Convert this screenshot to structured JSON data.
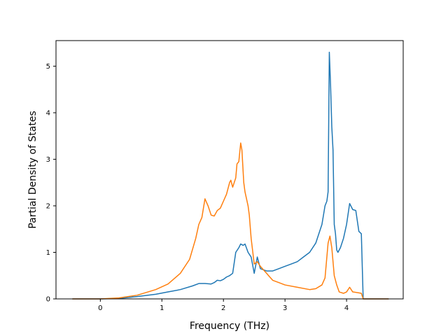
{
  "chart_data": {
    "type": "line",
    "title": "",
    "xlabel": "Frequency (THz)",
    "ylabel": "Partial Density of States",
    "xlim": [
      -0.72,
      4.92
    ],
    "ylim": [
      0,
      5.55
    ],
    "xticks": [
      0,
      1,
      2,
      3,
      4
    ],
    "yticks": [
      0,
      1,
      2,
      3,
      4,
      5
    ],
    "xtick_labels": [
      "0",
      "1",
      "2",
      "3",
      "4"
    ],
    "ytick_labels": [
      "0",
      "1",
      "2",
      "3",
      "4",
      "5"
    ],
    "grid": false,
    "legend": false,
    "series": [
      {
        "color": "#1f77b4",
        "x": [
          -0.45,
          0.0,
          0.3,
          0.6,
          0.9,
          1.1,
          1.3,
          1.5,
          1.6,
          1.7,
          1.8,
          1.85,
          1.9,
          1.95,
          2.0,
          2.05,
          2.1,
          2.15,
          2.2,
          2.25,
          2.28,
          2.32,
          2.35,
          2.4,
          2.45,
          2.5,
          2.55,
          2.6,
          2.7,
          2.8,
          2.9,
          3.0,
          3.1,
          3.2,
          3.3,
          3.4,
          3.5,
          3.55,
          3.6,
          3.65,
          3.68,
          3.7,
          3.72,
          3.74,
          3.76,
          3.78,
          3.8,
          3.82,
          3.84,
          3.86,
          3.9,
          3.95,
          4.0,
          4.05,
          4.1,
          4.15,
          4.2,
          4.24,
          4.27,
          4.3,
          4.5,
          4.68
        ],
        "y": [
          0,
          0,
          0.01,
          0.05,
          0.1,
          0.15,
          0.2,
          0.28,
          0.33,
          0.33,
          0.32,
          0.35,
          0.4,
          0.39,
          0.42,
          0.47,
          0.5,
          0.55,
          1.0,
          1.1,
          1.18,
          1.15,
          1.18,
          1.0,
          0.9,
          0.55,
          0.9,
          0.65,
          0.6,
          0.6,
          0.65,
          0.7,
          0.75,
          0.8,
          0.9,
          1.0,
          1.2,
          1.4,
          1.6,
          2.0,
          2.1,
          2.3,
          5.3,
          4.6,
          3.7,
          3.2,
          1.6,
          1.4,
          1.05,
          1.0,
          1.1,
          1.3,
          1.6,
          2.05,
          1.92,
          1.9,
          1.45,
          1.4,
          0.0,
          0,
          0,
          0
        ]
      },
      {
        "color": "#ff7f0e",
        "x": [
          -0.45,
          0.0,
          0.3,
          0.6,
          0.9,
          1.1,
          1.3,
          1.45,
          1.55,
          1.6,
          1.65,
          1.7,
          1.75,
          1.8,
          1.85,
          1.9,
          1.95,
          2.0,
          2.05,
          2.1,
          2.12,
          2.15,
          2.2,
          2.22,
          2.25,
          2.28,
          2.3,
          2.33,
          2.35,
          2.4,
          2.42,
          2.45,
          2.5,
          2.55,
          2.6,
          2.7,
          2.8,
          2.9,
          3.0,
          3.2,
          3.4,
          3.5,
          3.6,
          3.65,
          3.7,
          3.73,
          3.76,
          3.8,
          3.84,
          3.88,
          3.95,
          4.0,
          4.05,
          4.1,
          4.2,
          4.24,
          4.27,
          4.3,
          4.5,
          4.68
        ],
        "y": [
          0,
          0,
          0.02,
          0.08,
          0.2,
          0.32,
          0.55,
          0.85,
          1.3,
          1.6,
          1.75,
          2.15,
          2.0,
          1.8,
          1.78,
          1.9,
          1.95,
          2.1,
          2.25,
          2.5,
          2.55,
          2.4,
          2.6,
          2.9,
          2.95,
          3.35,
          3.2,
          2.5,
          2.3,
          2.0,
          1.8,
          1.3,
          0.75,
          0.8,
          0.7,
          0.55,
          0.4,
          0.35,
          0.3,
          0.25,
          0.2,
          0.22,
          0.3,
          0.45,
          1.2,
          1.35,
          1.1,
          0.5,
          0.3,
          0.15,
          0.12,
          0.15,
          0.25,
          0.15,
          0.13,
          0.12,
          0.0,
          0,
          0,
          0
        ]
      }
    ]
  }
}
